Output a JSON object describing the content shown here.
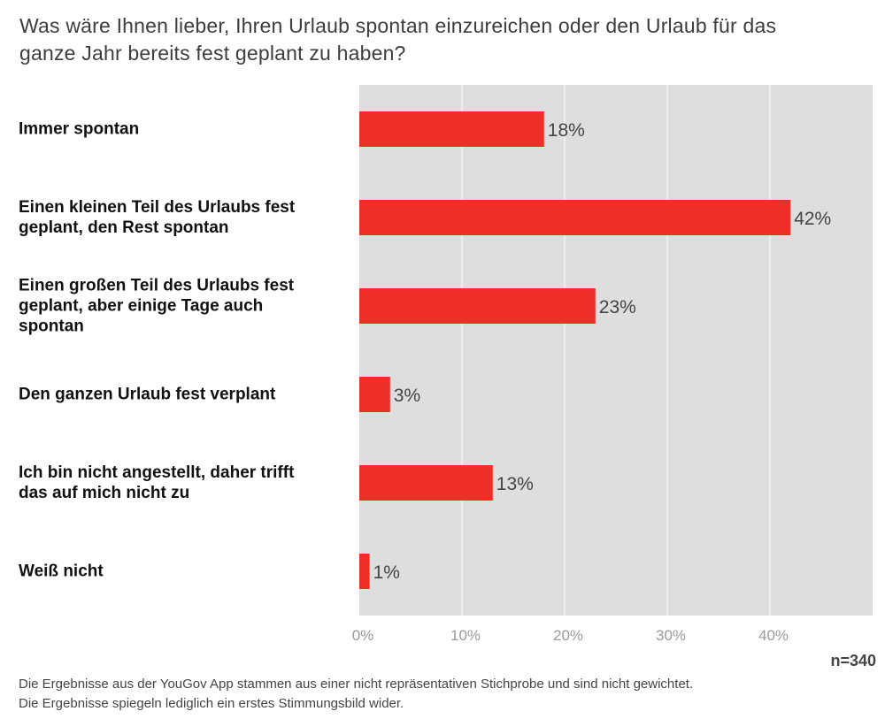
{
  "chart_data": {
    "type": "bar",
    "orientation": "horizontal",
    "title": "Was wäre Ihnen lieber, Ihren Urlaub spontan einzureichen oder den Urlaub für das ganze Jahr bereits fest geplant zu haben?",
    "categories": [
      "Immer spontan",
      "Einen kleinen Teil des Urlaubs fest\ngeplant, den Rest spontan",
      "Einen großen Teil des Urlaubs fest\ngeplant, aber einige Tage auch\nspontan",
      "Den ganzen Urlaub fest verplant",
      "Ich bin nicht angestellt, daher trifft\ndas auf mich nicht zu",
      "Weiß nicht"
    ],
    "values": [
      18,
      42,
      23,
      3,
      13,
      1
    ],
    "data_labels": [
      "18%",
      "42%",
      "23%",
      "3%",
      "13%",
      "1%"
    ],
    "xlim": [
      0,
      50
    ],
    "xticks": [
      0,
      10,
      20,
      30,
      40
    ],
    "xtick_labels": [
      "0%",
      "10%",
      "20%",
      "30%",
      "40%"
    ],
    "grid": true,
    "colors": {
      "bar": "#ee2e29",
      "background": "#dedede",
      "grid": "#ffffff"
    }
  },
  "sample": "n=340",
  "notes": [
    "Die Ergebnisse aus der YouGov App stammen aus einer nicht repräsentativen Stichprobe und sind nicht gewichtet.",
    "Die Ergebnisse spiegeln lediglich ein erstes Stimmungsbild wider."
  ]
}
